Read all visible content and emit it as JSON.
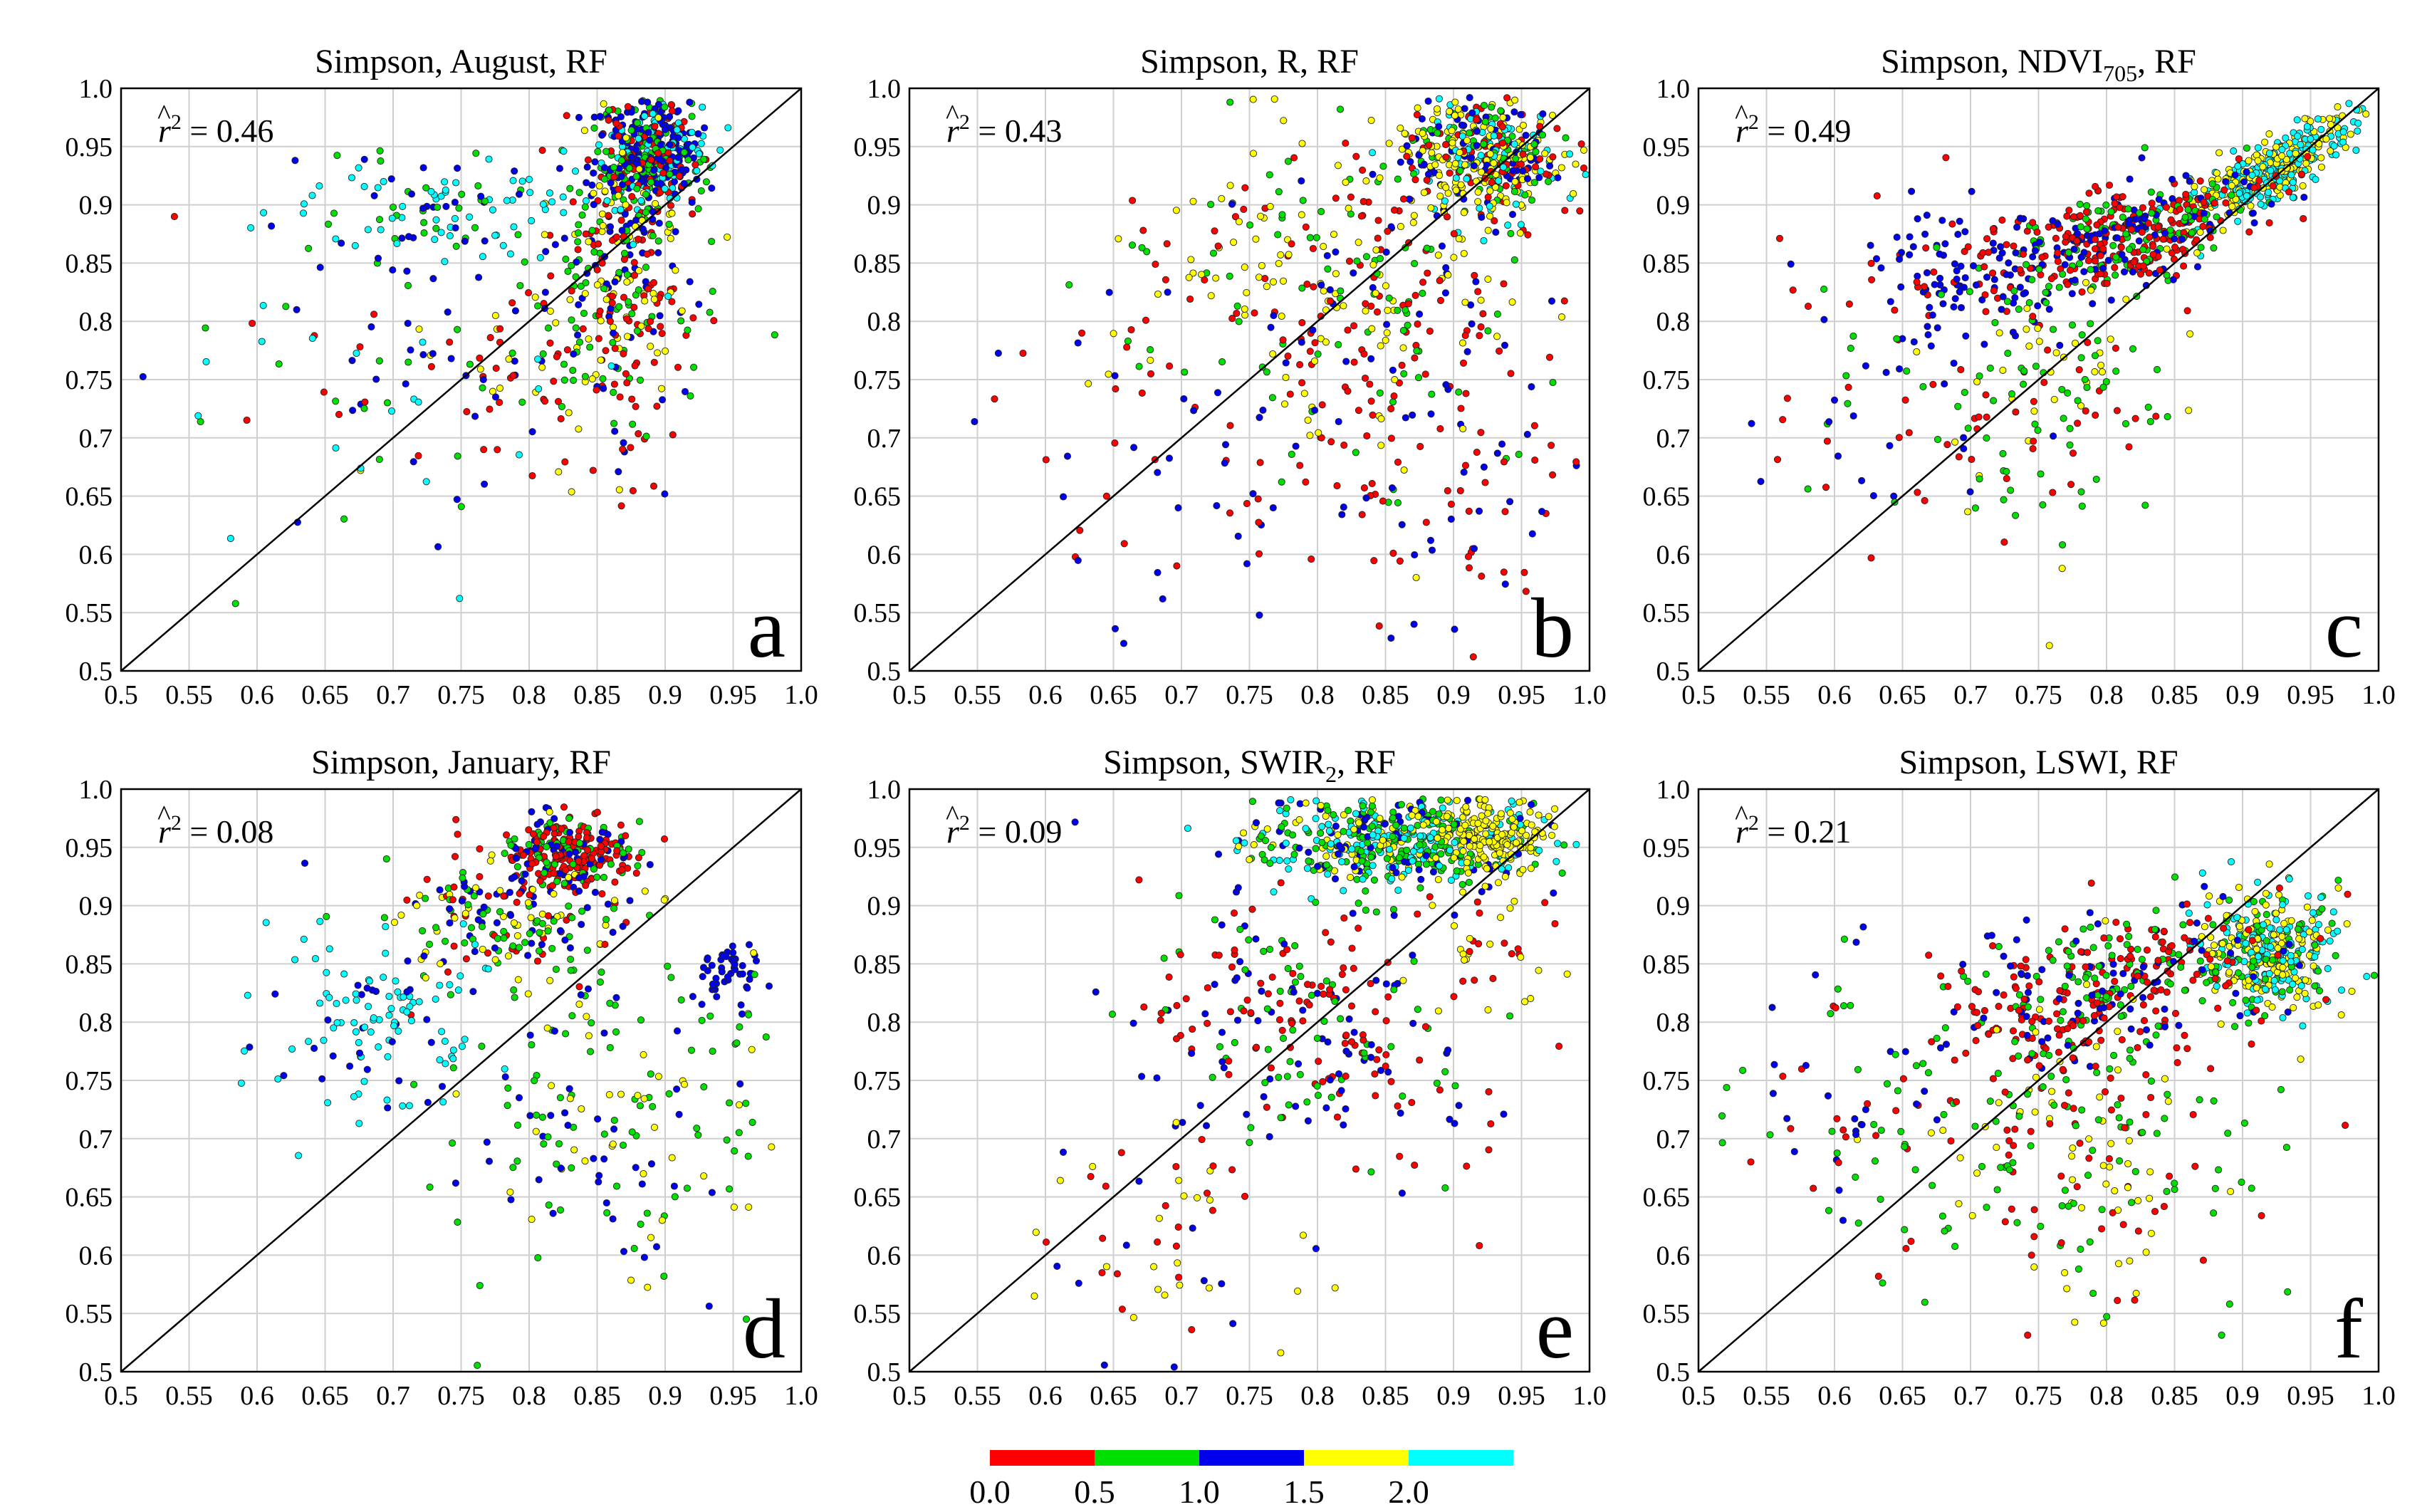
{
  "figure": {
    "colorbar": {
      "colors": [
        "#ff0000",
        "#00e000",
        "#0000ee",
        "#ffff00",
        "#00ffff"
      ],
      "tick_labels": [
        "0.0",
        "0.5",
        "1.0",
        "1.5",
        "2.0"
      ]
    }
  },
  "chart_data": [
    {
      "type": "scatter",
      "title": "Simpson, August, RF",
      "letter": "a",
      "r2_prefix": "r",
      "r2_text": " = 0.46",
      "xlim": [
        0.5,
        1.0
      ],
      "ylim": [
        0.5,
        1.0
      ],
      "x_ticks": [
        "0.5",
        "0.55",
        "0.6",
        "0.65",
        "0.7",
        "0.75",
        "0.8",
        "0.85",
        "0.9",
        "0.95",
        "1.0"
      ],
      "y_ticks": [
        "0.5",
        "0.55",
        "0.6",
        "0.65",
        "0.7",
        "0.75",
        "0.8",
        "0.85",
        "0.9",
        "0.95",
        "1.0"
      ],
      "reference_line": "1:1",
      "seed": 11,
      "clusters": [
        {
          "n": 420,
          "cx": 0.89,
          "cy": 0.945,
          "sx": 0.018,
          "sy": 0.022,
          "rot": 0,
          "colors": [
            2,
            2,
            1,
            4,
            0
          ]
        },
        {
          "n": 250,
          "cx": 0.87,
          "cy": 0.86,
          "sx": 0.025,
          "sy": 0.05,
          "rot": 0,
          "colors": [
            0,
            1,
            2,
            3
          ]
        },
        {
          "n": 120,
          "cx": 0.74,
          "cy": 0.9,
          "sx": 0.06,
          "sy": 0.025,
          "rot": 0,
          "colors": [
            4,
            4,
            2,
            1
          ]
        },
        {
          "n": 160,
          "cx": 0.84,
          "cy": 0.77,
          "sx": 0.05,
          "sy": 0.06,
          "rot": 0,
          "colors": [
            0,
            0,
            1,
            2,
            3
          ]
        },
        {
          "n": 90,
          "cx": 0.7,
          "cy": 0.78,
          "sx": 0.08,
          "sy": 0.08,
          "rot": 0,
          "colors": [
            0,
            1,
            2,
            4
          ]
        }
      ]
    },
    {
      "type": "scatter",
      "title": "Simpson, R, RF",
      "letter": "b",
      "r2_prefix": "r",
      "r2_text": " = 0.43",
      "xlim": [
        0.5,
        1.0
      ],
      "ylim": [
        0.5,
        1.0
      ],
      "x_ticks": [
        "0.5",
        "0.55",
        "0.6",
        "0.65",
        "0.7",
        "0.75",
        "0.8",
        "0.85",
        "0.9",
        "0.95",
        "1.0"
      ],
      "y_ticks": [
        "0.5",
        "0.55",
        "0.6",
        "0.65",
        "0.7",
        "0.75",
        "0.8",
        "0.85",
        "0.9",
        "0.95",
        "1.0"
      ],
      "reference_line": "1:1",
      "seed": 23,
      "clusters": [
        {
          "n": 450,
          "cx": 0.92,
          "cy": 0.94,
          "sx": 0.03,
          "sy": 0.025,
          "rot": 0,
          "colors": [
            3,
            3,
            1,
            4,
            0,
            2
          ]
        },
        {
          "n": 120,
          "cx": 0.76,
          "cy": 0.86,
          "sx": 0.06,
          "sy": 0.04,
          "rot": 0.6,
          "colors": [
            3,
            3,
            1,
            0
          ]
        },
        {
          "n": 260,
          "cx": 0.86,
          "cy": 0.78,
          "sx": 0.06,
          "sy": 0.08,
          "rot": 0,
          "colors": [
            0,
            0,
            2,
            1,
            3
          ]
        },
        {
          "n": 60,
          "cx": 0.7,
          "cy": 0.7,
          "sx": 0.07,
          "sy": 0.07,
          "rot": 0,
          "colors": [
            0,
            2
          ]
        },
        {
          "n": 50,
          "cx": 0.9,
          "cy": 0.62,
          "sx": 0.05,
          "sy": 0.05,
          "rot": 0,
          "colors": [
            2,
            0
          ]
        }
      ]
    },
    {
      "type": "scatter",
      "title": "Simpson, NDVI",
      "title_sub": "705",
      "title_suffix": ", RF",
      "letter": "c",
      "r2_prefix": "r",
      "r2_text": " = 0.49",
      "xlim": [
        0.5,
        1.0
      ],
      "ylim": [
        0.5,
        1.0
      ],
      "x_ticks": [
        "0.5",
        "0.55",
        "0.6",
        "0.65",
        "0.7",
        "0.75",
        "0.8",
        "0.85",
        "0.9",
        "0.95",
        "1.0"
      ],
      "y_ticks": [
        "0.5",
        "0.55",
        "0.6",
        "0.65",
        "0.7",
        "0.75",
        "0.8",
        "0.85",
        "0.9",
        "0.95",
        "1.0"
      ],
      "reference_line": "1:1",
      "seed": 37,
      "clusters": [
        {
          "n": 380,
          "cx": 0.92,
          "cy": 0.93,
          "sx": 0.035,
          "sy": 0.012,
          "rot": 0.6,
          "colors": [
            4,
            4,
            3,
            3
          ]
        },
        {
          "n": 400,
          "cx": 0.82,
          "cy": 0.875,
          "sx": 0.05,
          "sy": 0.02,
          "rot": 0.3,
          "colors": [
            0,
            0,
            2,
            1
          ]
        },
        {
          "n": 140,
          "cx": 0.7,
          "cy": 0.84,
          "sx": 0.05,
          "sy": 0.03,
          "rot": 0,
          "colors": [
            2,
            2,
            0
          ]
        },
        {
          "n": 140,
          "cx": 0.76,
          "cy": 0.74,
          "sx": 0.05,
          "sy": 0.06,
          "rot": 0,
          "colors": [
            1,
            1,
            3,
            0
          ]
        },
        {
          "n": 50,
          "cx": 0.63,
          "cy": 0.72,
          "sx": 0.05,
          "sy": 0.07,
          "rot": 0,
          "colors": [
            2,
            1,
            0
          ]
        }
      ]
    },
    {
      "type": "scatter",
      "title": "Simpson, January, RF",
      "letter": "d",
      "r2_prefix": "r",
      "r2_text": " = 0.08",
      "xlim": [
        0.5,
        1.0
      ],
      "ylim": [
        0.5,
        1.0
      ],
      "x_ticks": [
        "0.5",
        "0.55",
        "0.6",
        "0.65",
        "0.7",
        "0.75",
        "0.8",
        "0.85",
        "0.9",
        "0.95",
        "1.0"
      ],
      "y_ticks": [
        "0.5",
        "0.55",
        "0.6",
        "0.65",
        "0.7",
        "0.75",
        "0.8",
        "0.85",
        "0.9",
        "0.95",
        "1.0"
      ],
      "reference_line": "1:1",
      "seed": 41,
      "clusters": [
        {
          "n": 260,
          "cx": 0.83,
          "cy": 0.945,
          "sx": 0.025,
          "sy": 0.015,
          "rot": 0,
          "colors": [
            0,
            0,
            2,
            1
          ]
        },
        {
          "n": 200,
          "cx": 0.79,
          "cy": 0.89,
          "sx": 0.05,
          "sy": 0.03,
          "rot": 0,
          "colors": [
            2,
            1,
            0,
            3
          ]
        },
        {
          "n": 120,
          "cx": 0.69,
          "cy": 0.8,
          "sx": 0.045,
          "sy": 0.04,
          "rot": 0,
          "colors": [
            4,
            4,
            2
          ]
        },
        {
          "n": 50,
          "cx": 0.945,
          "cy": 0.84,
          "sx": 0.012,
          "sy": 0.015,
          "rot": 0,
          "colors": [
            2,
            2
          ]
        },
        {
          "n": 170,
          "cx": 0.86,
          "cy": 0.72,
          "sx": 0.07,
          "sy": 0.08,
          "rot": 0,
          "colors": [
            1,
            1,
            3,
            2
          ]
        }
      ]
    },
    {
      "type": "scatter",
      "title": "Simpson, SWIR",
      "title_sub": "2",
      "title_suffix": ", RF",
      "letter": "e",
      "r2_prefix": "r",
      "r2_text": " = 0.09",
      "xlim": [
        0.5,
        1.0
      ],
      "ylim": [
        0.5,
        1.0
      ],
      "x_ticks": [
        "0.5",
        "0.55",
        "0.6",
        "0.65",
        "0.7",
        "0.75",
        "0.8",
        "0.85",
        "0.9",
        "0.95",
        "1.0"
      ],
      "y_ticks": [
        "0.5",
        "0.55",
        "0.6",
        "0.65",
        "0.7",
        "0.75",
        "0.8",
        "0.85",
        "0.9",
        "0.95",
        "1.0"
      ],
      "reference_line": "1:1",
      "seed": 53,
      "clusters": [
        {
          "n": 520,
          "cx": 0.86,
          "cy": 0.955,
          "sx": 0.05,
          "sy": 0.02,
          "rot": 0,
          "colors": [
            1,
            4,
            3,
            2,
            1,
            4
          ]
        },
        {
          "n": 150,
          "cx": 0.93,
          "cy": 0.96,
          "sx": 0.02,
          "sy": 0.015,
          "rot": 0,
          "colors": [
            3,
            3
          ]
        },
        {
          "n": 250,
          "cx": 0.79,
          "cy": 0.8,
          "sx": 0.05,
          "sy": 0.07,
          "rot": 0.9,
          "colors": [
            0,
            0,
            2,
            1
          ]
        },
        {
          "n": 60,
          "cx": 0.7,
          "cy": 0.62,
          "sx": 0.06,
          "sy": 0.05,
          "rot": 0,
          "colors": [
            0,
            2,
            3
          ]
        },
        {
          "n": 40,
          "cx": 0.92,
          "cy": 0.86,
          "sx": 0.03,
          "sy": 0.03,
          "rot": 0,
          "colors": [
            3,
            0
          ]
        }
      ]
    },
    {
      "type": "scatter",
      "title": "Simpson, LSWI, RF",
      "letter": "f",
      "r2_prefix": "r",
      "r2_text": " = 0.21",
      "xlim": [
        0.5,
        1.0
      ],
      "ylim": [
        0.5,
        1.0
      ],
      "x_ticks": [
        "0.5",
        "0.55",
        "0.6",
        "0.65",
        "0.7",
        "0.75",
        "0.8",
        "0.85",
        "0.9",
        "0.95",
        "1.0"
      ],
      "y_ticks": [
        "0.5",
        "0.55",
        "0.6",
        "0.65",
        "0.7",
        "0.75",
        "0.8",
        "0.85",
        "0.9",
        "0.95",
        "1.0"
      ],
      "reference_line": "1:1",
      "seed": 67,
      "clusters": [
        {
          "n": 380,
          "cx": 0.92,
          "cy": 0.86,
          "sx": 0.025,
          "sy": 0.025,
          "rot": 0.5,
          "colors": [
            4,
            4,
            3,
            3,
            1
          ]
        },
        {
          "n": 350,
          "cx": 0.8,
          "cy": 0.83,
          "sx": 0.06,
          "sy": 0.03,
          "rot": 0.3,
          "colors": [
            0,
            0,
            2,
            1
          ]
        },
        {
          "n": 220,
          "cx": 0.78,
          "cy": 0.7,
          "sx": 0.07,
          "sy": 0.07,
          "rot": 0,
          "colors": [
            1,
            1,
            3,
            0
          ]
        },
        {
          "n": 80,
          "cx": 0.62,
          "cy": 0.74,
          "sx": 0.05,
          "sy": 0.06,
          "rot": 0,
          "colors": [
            0,
            2,
            1
          ]
        }
      ]
    }
  ]
}
